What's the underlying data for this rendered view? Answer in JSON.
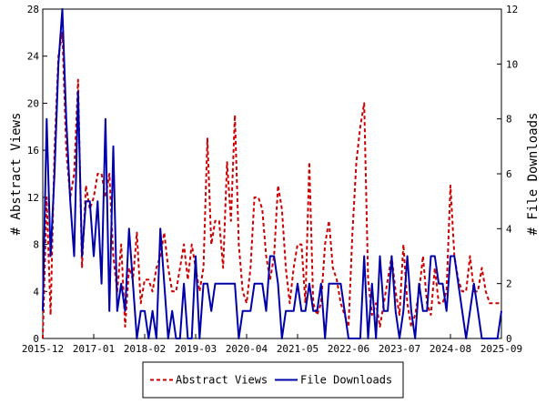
{
  "chart_data": {
    "type": "line",
    "x_ticks": [
      "2015-12",
      "2017-01",
      "2018-02",
      "2019-03",
      "2020-04",
      "2021-05",
      "2022-06",
      "2023-07",
      "2024-08",
      "2025-09"
    ],
    "y_left": {
      "label": "# Abstract Views",
      "range": [
        0,
        28
      ],
      "ticks": [
        0,
        4,
        8,
        12,
        16,
        20,
        24,
        28
      ]
    },
    "y_right": {
      "label": "# File Downloads",
      "range": [
        0,
        12
      ],
      "ticks": [
        0,
        2,
        4,
        6,
        8,
        10,
        12
      ]
    },
    "grid": false,
    "legend_position": "bottom",
    "series": [
      {
        "name": "Abstract Views",
        "axis": "left",
        "color": "#cc0000",
        "style": "dashed",
        "values": [
          [
            "2015-12",
            0
          ],
          [
            "2016-01",
            12
          ],
          [
            "2016-02",
            2
          ],
          [
            "2016-03",
            16
          ],
          [
            "2016-04",
            24
          ],
          [
            "2016-05",
            26
          ],
          [
            "2016-06",
            16
          ],
          [
            "2016-07",
            12
          ],
          [
            "2016-08",
            14
          ],
          [
            "2016-09",
            22
          ],
          [
            "2016-10",
            6
          ],
          [
            "2016-11",
            13
          ],
          [
            "2016-12",
            11
          ],
          [
            "2017-01",
            12
          ],
          [
            "2017-02",
            14
          ],
          [
            "2017-03",
            14
          ],
          [
            "2017-04",
            12
          ],
          [
            "2017-05",
            14
          ],
          [
            "2017-06",
            7
          ],
          [
            "2017-07",
            4
          ],
          [
            "2017-08",
            8
          ],
          [
            "2017-09",
            1
          ],
          [
            "2017-10",
            6
          ],
          [
            "2017-11",
            5
          ],
          [
            "2017-12",
            9
          ],
          [
            "2018-01",
            3
          ],
          [
            "2018-02",
            5
          ],
          [
            "2018-03",
            5
          ],
          [
            "2018-04",
            4
          ],
          [
            "2018-05",
            6
          ],
          [
            "2018-06",
            7
          ],
          [
            "2018-07",
            9
          ],
          [
            "2018-08",
            6
          ],
          [
            "2018-09",
            4
          ],
          [
            "2018-10",
            4
          ],
          [
            "2018-11",
            6
          ],
          [
            "2018-12",
            8
          ],
          [
            "2019-01",
            5
          ],
          [
            "2019-02",
            8
          ],
          [
            "2019-03",
            6
          ],
          [
            "2019-04",
            4
          ],
          [
            "2019-05",
            6
          ],
          [
            "2019-06",
            17
          ],
          [
            "2019-07",
            8
          ],
          [
            "2019-08",
            10
          ],
          [
            "2019-09",
            10
          ],
          [
            "2019-10",
            6
          ],
          [
            "2019-11",
            15
          ],
          [
            "2019-12",
            10
          ],
          [
            "2020-01",
            19
          ],
          [
            "2020-02",
            8
          ],
          [
            "2020-03",
            4
          ],
          [
            "2020-04",
            3
          ],
          [
            "2020-05",
            6
          ],
          [
            "2020-06",
            12
          ],
          [
            "2020-07",
            12
          ],
          [
            "2020-08",
            11
          ],
          [
            "2020-09",
            7
          ],
          [
            "2020-10",
            5
          ],
          [
            "2020-11",
            7
          ],
          [
            "2020-12",
            13
          ],
          [
            "2021-01",
            11
          ],
          [
            "2021-02",
            6
          ],
          [
            "2021-03",
            3
          ],
          [
            "2021-04",
            6
          ],
          [
            "2021-05",
            8
          ],
          [
            "2021-06",
            8
          ],
          [
            "2021-07",
            3
          ],
          [
            "2021-08",
            15
          ],
          [
            "2021-09",
            3
          ],
          [
            "2021-10",
            2
          ],
          [
            "2021-11",
            3
          ],
          [
            "2021-12",
            8
          ],
          [
            "2022-01",
            10
          ],
          [
            "2022-02",
            6
          ],
          [
            "2022-03",
            5
          ],
          [
            "2022-04",
            3
          ],
          [
            "2022-05",
            2
          ],
          [
            "2022-06",
            1
          ],
          [
            "2022-07",
            9
          ],
          [
            "2022-08",
            15
          ],
          [
            "2022-09",
            18
          ],
          [
            "2022-10",
            20
          ],
          [
            "2022-11",
            5
          ],
          [
            "2022-12",
            2
          ],
          [
            "2023-01",
            3
          ],
          [
            "2023-02",
            1
          ],
          [
            "2023-03",
            3
          ],
          [
            "2023-04",
            5
          ],
          [
            "2023-05",
            7
          ],
          [
            "2023-06",
            4
          ],
          [
            "2023-07",
            2
          ],
          [
            "2023-08",
            8
          ],
          [
            "2023-09",
            3
          ],
          [
            "2023-10",
            1
          ],
          [
            "2023-11",
            2
          ],
          [
            "2023-12",
            4
          ],
          [
            "2024-01",
            7
          ],
          [
            "2024-02",
            3
          ],
          [
            "2024-03",
            2
          ],
          [
            "2024-04",
            6
          ],
          [
            "2024-05",
            3
          ],
          [
            "2024-06",
            3
          ],
          [
            "2024-07",
            4
          ],
          [
            "2024-08",
            13
          ],
          [
            "2024-09",
            7
          ],
          [
            "2024-10",
            5
          ],
          [
            "2024-11",
            4
          ],
          [
            "2024-12",
            4
          ],
          [
            "2025-01",
            7
          ],
          [
            "2025-02",
            4
          ],
          [
            "2025-03",
            4
          ],
          [
            "2025-04",
            6
          ],
          [
            "2025-05",
            4
          ],
          [
            "2025-06",
            3
          ],
          [
            "2025-07",
            3
          ],
          [
            "2025-08",
            3
          ],
          [
            "2025-09",
            3
          ]
        ]
      },
      {
        "name": "File Downloads",
        "axis": "right",
        "color": "#0000aa",
        "style": "solid",
        "values": [
          [
            "2015-12",
            1
          ],
          [
            "2016-01",
            8
          ],
          [
            "2016-02",
            3
          ],
          [
            "2016-03",
            6
          ],
          [
            "2016-04",
            10
          ],
          [
            "2016-05",
            12
          ],
          [
            "2016-06",
            8
          ],
          [
            "2016-07",
            5
          ],
          [
            "2016-08",
            3
          ],
          [
            "2016-09",
            9
          ],
          [
            "2016-10",
            3
          ],
          [
            "2016-11",
            5
          ],
          [
            "2016-12",
            5
          ],
          [
            "2017-01",
            3
          ],
          [
            "2017-02",
            5
          ],
          [
            "2017-03",
            2
          ],
          [
            "2017-04",
            8
          ],
          [
            "2017-05",
            1
          ],
          [
            "2017-06",
            7
          ],
          [
            "2017-07",
            1
          ],
          [
            "2017-08",
            2
          ],
          [
            "2017-09",
            1
          ],
          [
            "2017-10",
            4
          ],
          [
            "2017-11",
            2
          ],
          [
            "2017-12",
            0
          ],
          [
            "2018-01",
            1
          ],
          [
            "2018-02",
            1
          ],
          [
            "2018-03",
            0
          ],
          [
            "2018-04",
            1
          ],
          [
            "2018-05",
            0
          ],
          [
            "2018-06",
            4
          ],
          [
            "2018-07",
            2
          ],
          [
            "2018-08",
            0
          ],
          [
            "2018-09",
            1
          ],
          [
            "2018-10",
            0
          ],
          [
            "2018-11",
            0
          ],
          [
            "2018-12",
            2
          ],
          [
            "2019-01",
            0
          ],
          [
            "2019-02",
            0
          ],
          [
            "2019-03",
            3
          ],
          [
            "2019-04",
            0
          ],
          [
            "2019-05",
            2
          ],
          [
            "2019-06",
            2
          ],
          [
            "2019-07",
            1
          ],
          [
            "2019-08",
            2
          ],
          [
            "2019-09",
            2
          ],
          [
            "2019-10",
            2
          ],
          [
            "2019-11",
            2
          ],
          [
            "2019-12",
            2
          ],
          [
            "2020-01",
            2
          ],
          [
            "2020-02",
            0
          ],
          [
            "2020-03",
            1
          ],
          [
            "2020-04",
            1
          ],
          [
            "2020-05",
            1
          ],
          [
            "2020-06",
            2
          ],
          [
            "2020-07",
            2
          ],
          [
            "2020-08",
            2
          ],
          [
            "2020-09",
            1
          ],
          [
            "2020-10",
            3
          ],
          [
            "2020-11",
            3
          ],
          [
            "2020-12",
            2
          ],
          [
            "2021-01",
            0
          ],
          [
            "2021-02",
            1
          ],
          [
            "2021-03",
            1
          ],
          [
            "2021-04",
            1
          ],
          [
            "2021-05",
            2
          ],
          [
            "2021-06",
            1
          ],
          [
            "2021-07",
            1
          ],
          [
            "2021-08",
            2
          ],
          [
            "2021-09",
            1
          ],
          [
            "2021-10",
            1
          ],
          [
            "2021-11",
            2
          ],
          [
            "2021-12",
            0
          ],
          [
            "2022-01",
            2
          ],
          [
            "2022-02",
            2
          ],
          [
            "2022-03",
            2
          ],
          [
            "2022-04",
            2
          ],
          [
            "2022-05",
            1
          ],
          [
            "2022-06",
            0
          ],
          [
            "2022-07",
            0
          ],
          [
            "2022-08",
            0
          ],
          [
            "2022-09",
            0
          ],
          [
            "2022-10",
            3
          ],
          [
            "2022-11",
            0
          ],
          [
            "2022-12",
            2
          ],
          [
            "2023-01",
            0
          ],
          [
            "2023-02",
            3
          ],
          [
            "2023-03",
            1
          ],
          [
            "2023-04",
            1
          ],
          [
            "2023-05",
            3
          ],
          [
            "2023-06",
            1
          ],
          [
            "2023-07",
            0
          ],
          [
            "2023-08",
            1
          ],
          [
            "2023-09",
            3
          ],
          [
            "2023-10",
            1
          ],
          [
            "2023-11",
            0
          ],
          [
            "2023-12",
            2
          ],
          [
            "2024-01",
            1
          ],
          [
            "2024-02",
            1
          ],
          [
            "2024-03",
            3
          ],
          [
            "2024-04",
            3
          ],
          [
            "2024-05",
            2
          ],
          [
            "2024-06",
            2
          ],
          [
            "2024-07",
            1
          ],
          [
            "2024-08",
            3
          ],
          [
            "2024-09",
            3
          ],
          [
            "2024-10",
            2
          ],
          [
            "2024-11",
            1
          ],
          [
            "2024-12",
            0
          ],
          [
            "2025-01",
            1
          ],
          [
            "2025-02",
            2
          ],
          [
            "2025-03",
            1
          ],
          [
            "2025-04",
            0
          ],
          [
            "2025-05",
            0
          ],
          [
            "2025-06",
            0
          ],
          [
            "2025-07",
            0
          ],
          [
            "2025-08",
            0
          ],
          [
            "2025-09",
            1
          ]
        ]
      }
    ]
  }
}
